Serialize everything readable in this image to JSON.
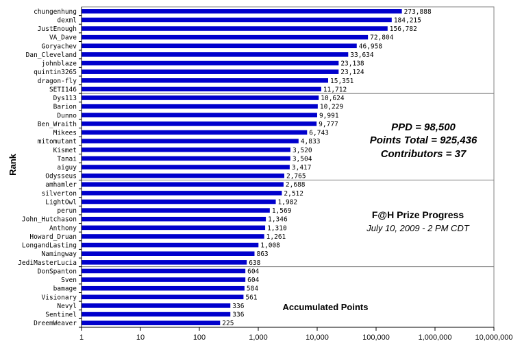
{
  "chart_data": {
    "type": "bar",
    "orientation": "horizontal",
    "x_scale": "log",
    "xlim": [
      1,
      10000000
    ],
    "x_ticks": [
      "1",
      "10",
      "100",
      "1,000",
      "10,000",
      "100,000",
      "1,000,000",
      "10,000,000"
    ],
    "xlabel": "Accumulated Points",
    "ylabel": "Rank",
    "grid": "horizontal lines every 10 ranks",
    "bar_color": "#0000CC",
    "categories": [
      "chungenhung",
      "dexml",
      "JustEnough",
      "VA_Dave",
      "Goryachev",
      "Dan_Cleveland",
      "johnblaze",
      "quintin3265",
      "dragon-fly",
      "SETI146",
      "Dys113",
      "Barion",
      "Dunno",
      "Ben_Wraith",
      "Mikees",
      "mitomutant",
      "Kismet",
      "Tanai",
      "aiguy",
      "Odysseus",
      "amhamler",
      "silverton",
      "LightOwl",
      "perun",
      "John_Hutchason",
      "Anthony",
      "Howard_Druan",
      "LongandLasting",
      "Namingway",
      "JediMasterLucia",
      "DonSpanton",
      "Sven",
      "bamage",
      "Visionary",
      "Nevyl",
      "Sentinel",
      "DreemWeaver"
    ],
    "values": [
      273888,
      184215,
      156782,
      72804,
      46958,
      33634,
      23138,
      23124,
      15351,
      11712,
      10624,
      10229,
      9991,
      9777,
      6743,
      4833,
      3520,
      3504,
      3417,
      2765,
      2688,
      2512,
      1982,
      1569,
      1346,
      1310,
      1261,
      1008,
      863,
      638,
      604,
      604,
      584,
      561,
      336,
      336,
      225
    ],
    "value_labels": [
      "273,888",
      "184,215",
      "156,782",
      "72,804",
      "46,958",
      "33,634",
      "23,138",
      "23,124",
      "15,351",
      "11,712",
      "10,624",
      "10,229",
      "9,991",
      "9,777",
      "6,743",
      "4,833",
      "3,520",
      "3,504",
      "3,417",
      "2,765",
      "2,688",
      "2,512",
      "1,982",
      "1,569",
      "1,346",
      "1,310",
      "1,261",
      "1,008",
      "863",
      "638",
      "604",
      "604",
      "584",
      "561",
      "336",
      "336",
      "225"
    ]
  },
  "annotations": {
    "ppd": "PPD = 98,500",
    "points_total": "Points Total = 925,436",
    "contributors": "Contributors = 37",
    "prize_title": "F@H Prize Progress",
    "prize_date": "July 10, 2009 - 2 PM CDT"
  }
}
